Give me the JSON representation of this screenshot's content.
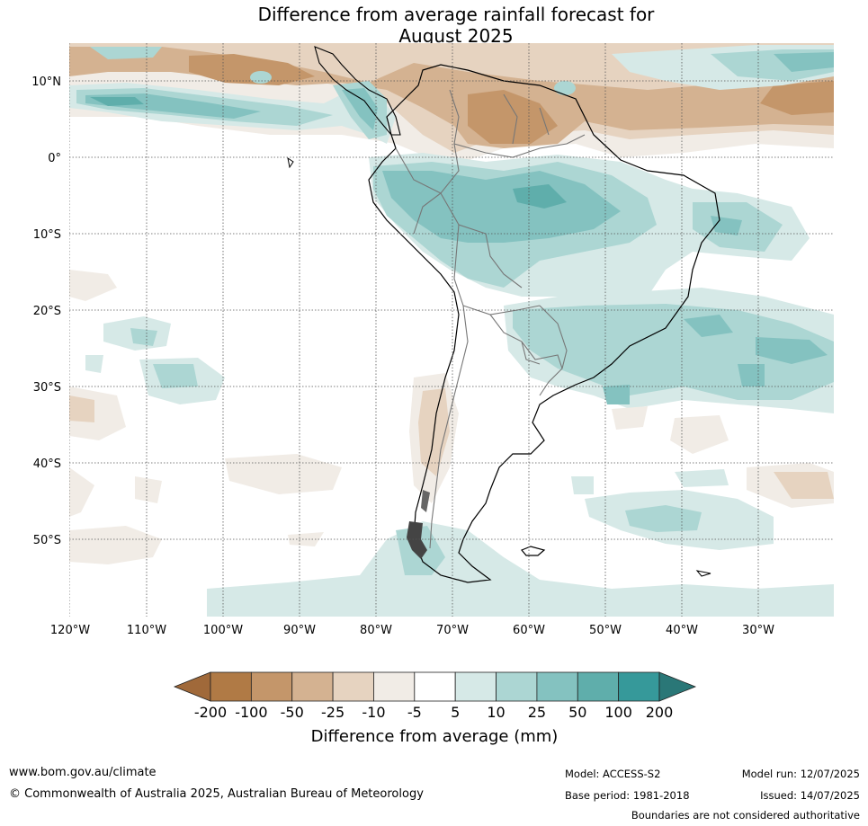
{
  "title": {
    "line1": "Difference from average rainfall forecast for",
    "line2": "August 2025"
  },
  "map": {
    "lat_labels": [
      "10°N",
      "0°",
      "10°S",
      "20°S",
      "30°S",
      "40°S",
      "50°S"
    ],
    "lon_labels": [
      "120°W",
      "110°W",
      "100°W",
      "90°W",
      "80°W",
      "70°W",
      "60°W",
      "50°W",
      "40°W",
      "30°W"
    ]
  },
  "colorbar": {
    "labels": [
      "-200",
      "-100",
      "-50",
      "-25",
      "-10",
      "-5",
      "5",
      "10",
      "25",
      "50",
      "100",
      "200"
    ],
    "colors": [
      "#a0693a",
      "#b07a45",
      "#c4966a",
      "#d4b291",
      "#e6d3c0",
      "#f1ece6",
      "#ffffff",
      "#d6e9e7",
      "#acd6d3",
      "#84c2c0",
      "#5faeab",
      "#36999a",
      "#2a7777"
    ],
    "title": "Difference from average (mm)"
  },
  "footer": {
    "url": "www.bom.gov.au/climate",
    "copyright": "© Commonwealth of Australia 2025, Australian Bureau of Meteorology",
    "model": "Model: ACCESS-S2",
    "base_period": "Base period: 1981-2018",
    "model_run": "Model run: 12/07/2025",
    "issued": "Issued: 14/07/2025",
    "disclaimer": "Boundaries are not considered authoritative"
  }
}
